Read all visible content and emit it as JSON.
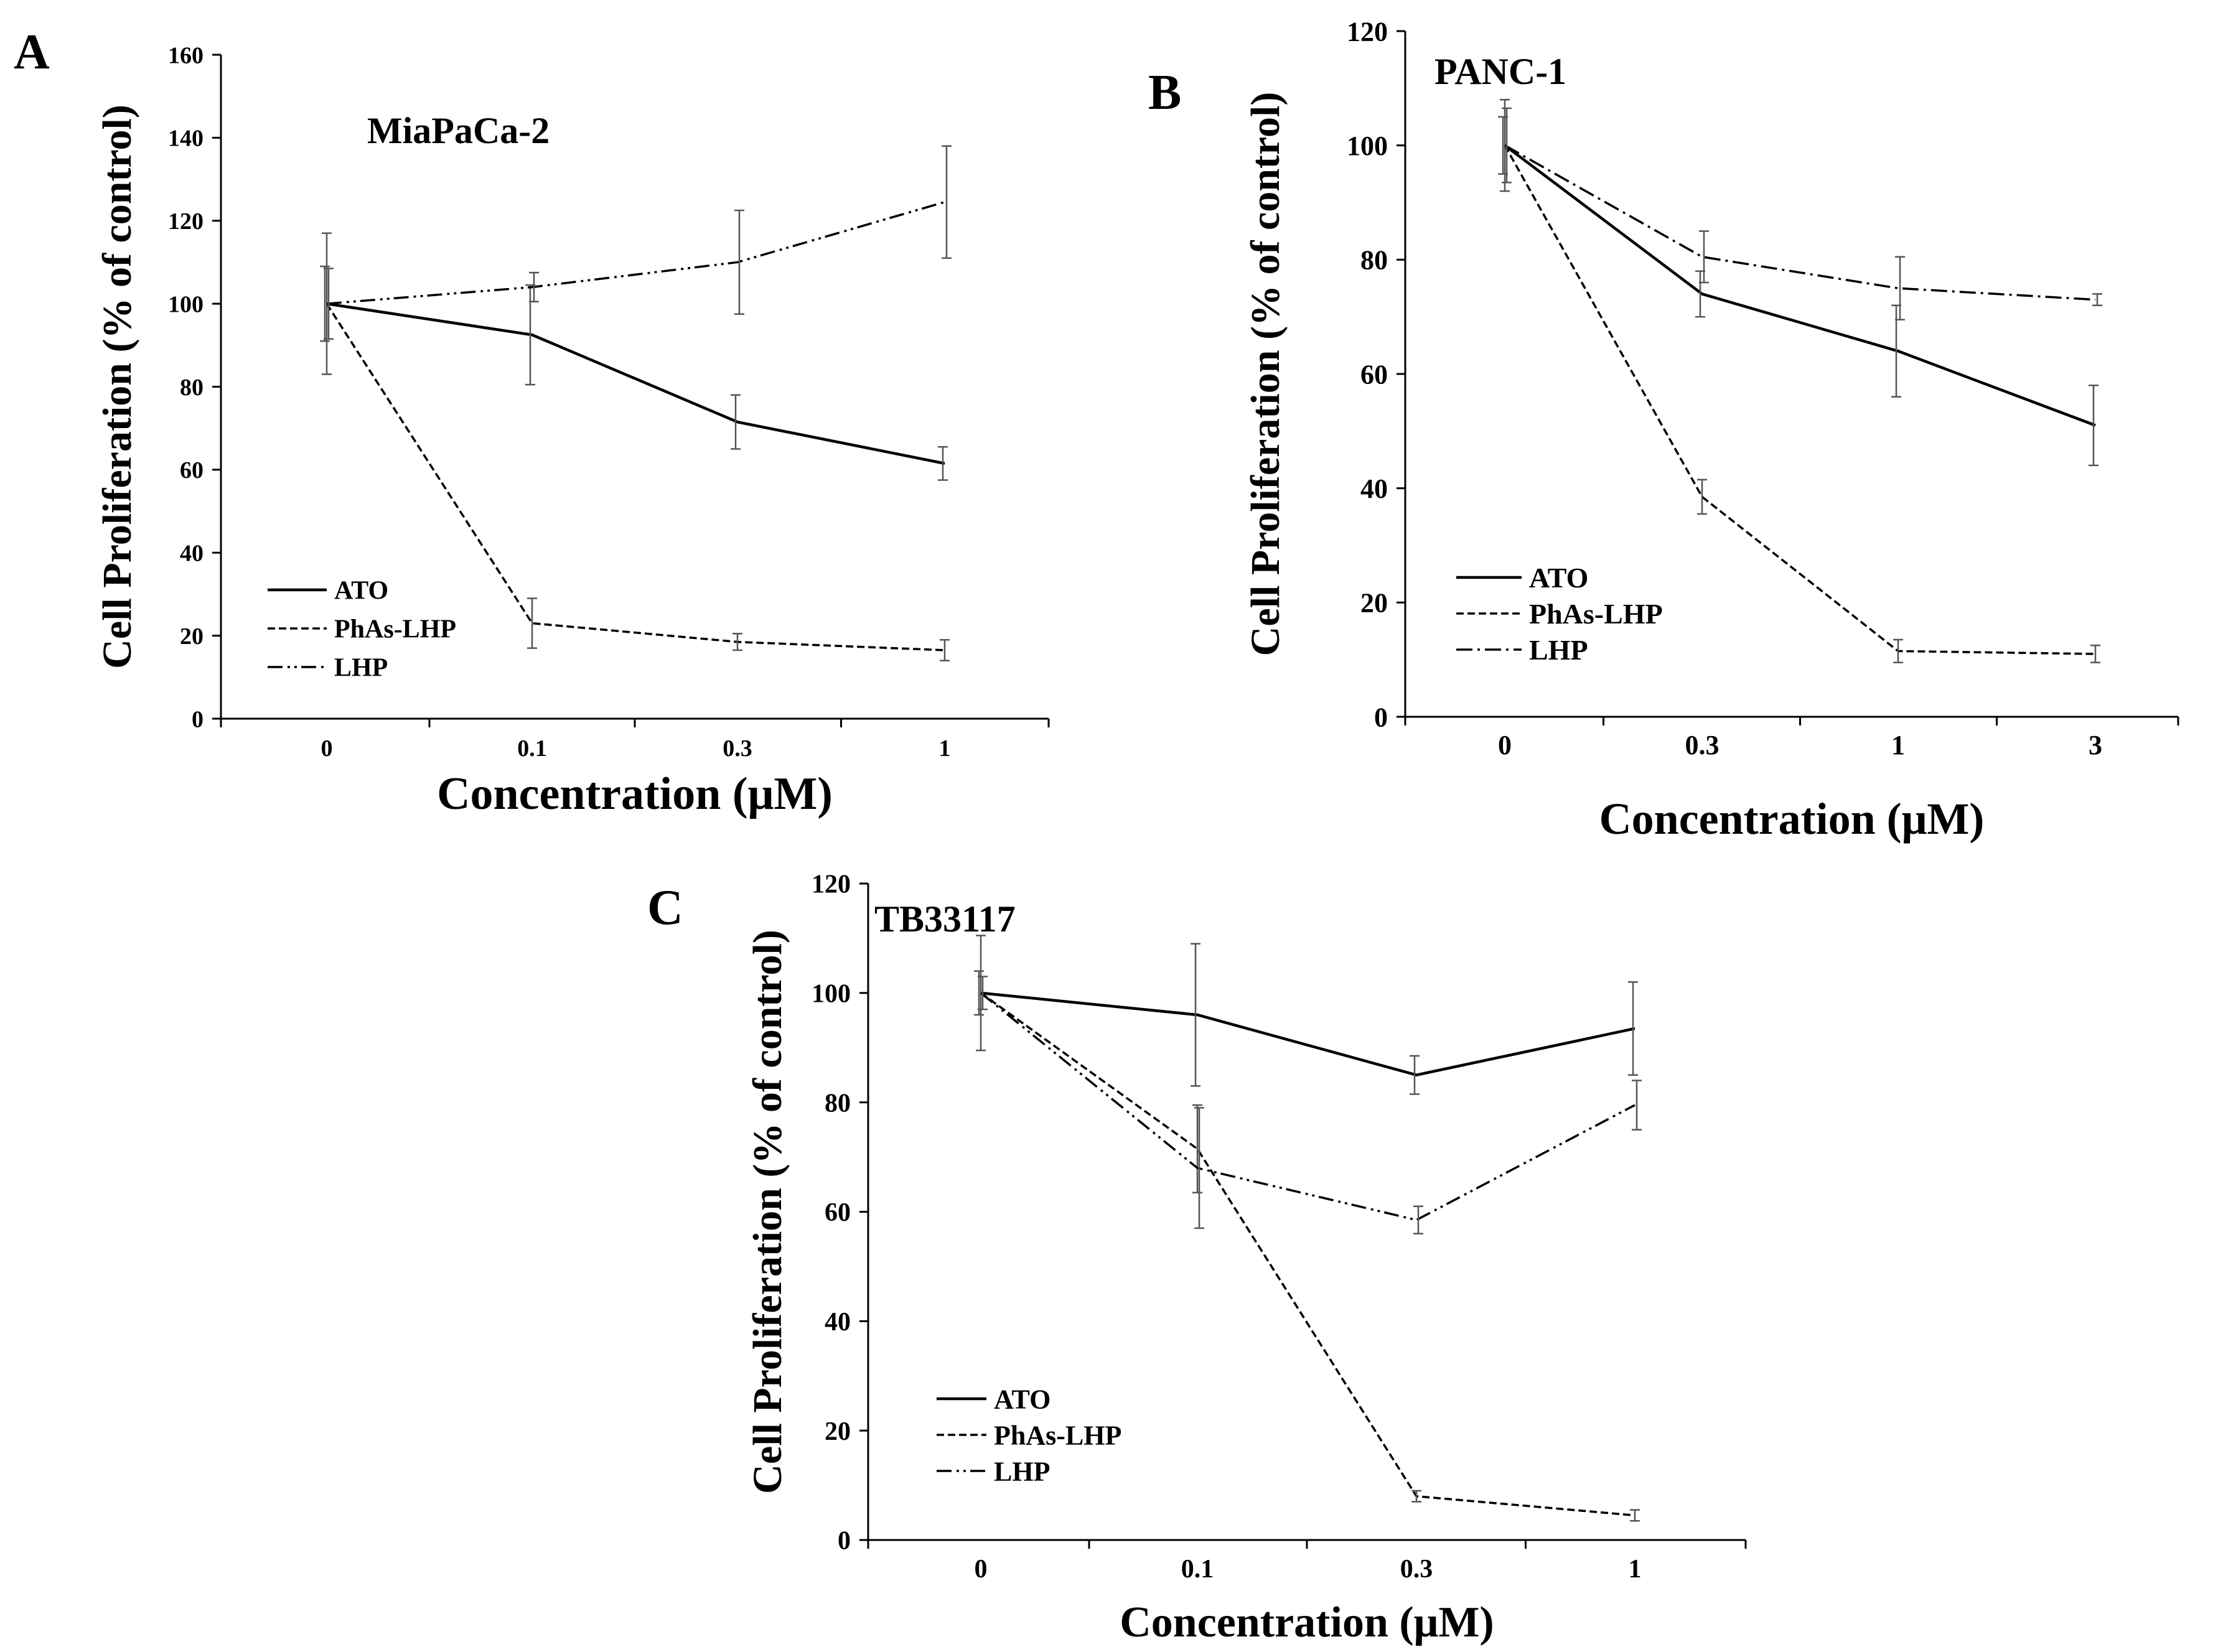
{
  "figure": {
    "panels": [
      {
        "letter": "A",
        "title": "MiaPaCa-2",
        "title_pos": "top-center",
        "chart_data": {
          "type": "line",
          "title": "MiaPaCa-2",
          "xlabel": "Concentration (μM)",
          "ylabel": "Cell Proliferation (% of control)",
          "categories": [
            "0",
            "0.1",
            "0.3",
            "1"
          ],
          "ylim": [
            0,
            160
          ],
          "yticks": [
            0,
            20,
            40,
            60,
            80,
            100,
            120,
            140,
            160
          ],
          "series": [
            {
              "name": "ATO",
              "style": "solid",
              "values": [
                100,
                92.5,
                71.5,
                61.5
              ],
              "errors": [
                9,
                12,
                6.5,
                4
              ]
            },
            {
              "name": "PhAs-LHP",
              "style": "dashed",
              "values": [
                100,
                23,
                18.5,
                16.5
              ],
              "errors": [
                17,
                6,
                2,
                2.5
              ]
            },
            {
              "name": "LHP",
              "style": "dashdotdot",
              "values": [
                100,
                104,
                110,
                124.5
              ],
              "errors": [
                8.5,
                3.5,
                12.5,
                13.5
              ]
            }
          ],
          "legend": "lower-left"
        }
      },
      {
        "letter": "B",
        "title": "PANC-1",
        "title_pos": "top-left",
        "chart_data": {
          "type": "line",
          "title": "PANC-1",
          "xlabel": "Concentration (μM)",
          "ylabel": "Cell Proliferation (% of control)",
          "categories": [
            "0",
            "0.3",
            "1",
            "3"
          ],
          "ylim": [
            0,
            120
          ],
          "yticks": [
            0,
            20,
            40,
            60,
            80,
            100,
            120
          ],
          "series": [
            {
              "name": "ATO",
              "style": "solid",
              "values": [
                100,
                74,
                64,
                51
              ],
              "errors": [
                5,
                4,
                8,
                7
              ]
            },
            {
              "name": "PhAs-LHP",
              "style": "dashed",
              "values": [
                100,
                38.5,
                11.5,
                11
              ],
              "errors": [
                8,
                3,
                2,
                1.5
              ]
            },
            {
              "name": "LHP",
              "style": "dashdot",
              "values": [
                100,
                80.5,
                75,
                73
              ],
              "errors": [
                6.5,
                4.5,
                5.5,
                1
              ]
            }
          ],
          "legend": "lower-left"
        }
      },
      {
        "letter": "C",
        "title": "TB33117",
        "title_pos": "top-left",
        "chart_data": {
          "type": "line",
          "title": "TB33117",
          "xlabel": "Concentration (μM)",
          "ylabel": "Cell Proliferation (% of control)",
          "categories": [
            "0",
            "0.1",
            "0.3",
            "1"
          ],
          "ylim": [
            0,
            120
          ],
          "yticks": [
            0,
            20,
            40,
            60,
            80,
            100,
            120
          ],
          "series": [
            {
              "name": "ATO",
              "style": "solid",
              "values": [
                100,
                96,
                85,
                93.5
              ],
              "errors": [
                4,
                13,
                3.5,
                8.5
              ]
            },
            {
              "name": "PhAs-LHP",
              "style": "dashed",
              "values": [
                100,
                71.5,
                8,
                4.5
              ],
              "errors": [
                10.5,
                8,
                1,
                1
              ]
            },
            {
              "name": "LHP",
              "style": "dashdotdot",
              "values": [
                100,
                68,
                58.5,
                79.5
              ],
              "errors": [
                3,
                11,
                2.5,
                4.5
              ]
            }
          ],
          "legend": "lower-left"
        }
      }
    ],
    "colors": {
      "line": "#000000",
      "errorbar": "#555555",
      "background": "#ffffff"
    }
  }
}
